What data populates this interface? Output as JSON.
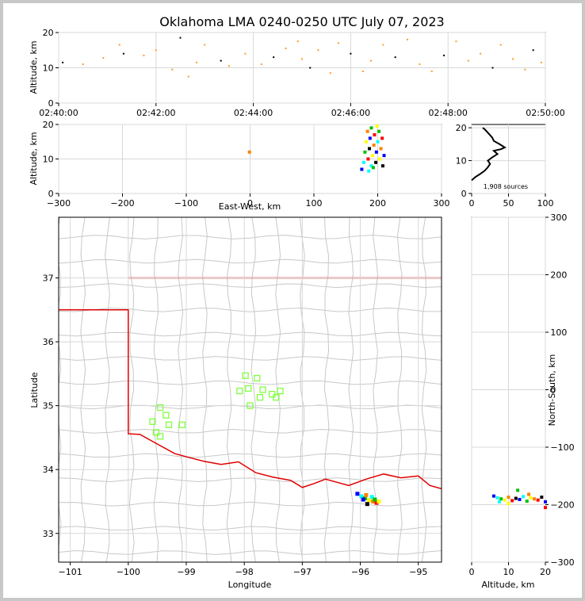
{
  "title": "Oklahoma LMA 0240-0250 UTC July 07, 2023",
  "panels": {
    "time_height": {
      "ylabel": "Altitude, km",
      "xticks": [
        "02:40:00",
        "02:42:00",
        "02:44:00",
        "02:46:00",
        "02:48:00",
        "02:50:00"
      ],
      "yticks": [
        "0",
        "10",
        "20"
      ]
    },
    "ew_alt": {
      "ylabel": "Altitude, km",
      "xlabel": "East-West, km",
      "xticks": [
        "−300",
        "−200",
        "−100",
        "0",
        "100",
        "200",
        "300"
      ],
      "yticks": [
        "0",
        "10",
        "20"
      ]
    },
    "histogram": {
      "xticks": [
        "0",
        "50",
        "100"
      ],
      "yticks": [
        "0",
        "10",
        "20"
      ],
      "annotation": "1,908 sources"
    },
    "map": {
      "xlabel": "Longitude",
      "ylabel": "Latitude",
      "xticks": [
        "−101",
        "−100",
        "−99",
        "−98",
        "−97",
        "−96",
        "−95"
      ],
      "yticks": [
        "33",
        "34",
        "35",
        "36",
        "37"
      ]
    },
    "alt_ns": {
      "xlabel": "Altitude, km",
      "ylabel": "North-South, km",
      "xticks": [
        "0",
        "10",
        "20"
      ],
      "yticks": [
        "300",
        "200",
        "100",
        "0",
        "−100",
        "−200",
        "−300"
      ]
    }
  },
  "colors": {
    "state_border": "#e00000",
    "station": "#80ff40",
    "county": "#c8c8c8",
    "source_scale": [
      "#0000ff",
      "#00ffff",
      "#00c000",
      "#ffff00",
      "#ff8000",
      "#ff0000",
      "#000000"
    ]
  },
  "chart_data": [
    {
      "id": "time_height",
      "type": "scatter",
      "xlabel": "",
      "ylabel": "Altitude, km",
      "xlim": [
        "02:40:00",
        "02:50:00"
      ],
      "ylim": [
        0,
        20
      ],
      "grid": true,
      "series": [
        {
          "points": [
            [
              "02:40:05",
              11.5
            ],
            [
              "02:40:30",
              11.0
            ],
            [
              "02:40:55",
              12.8
            ],
            [
              "02:41:15",
              16.5
            ],
            [
              "02:41:20",
              14.0
            ],
            [
              "02:41:45",
              13.5
            ],
            [
              "02:42:00",
              15.0
            ],
            [
              "02:42:20",
              9.5
            ],
            [
              "02:42:30",
              18.5
            ],
            [
              "02:42:40",
              7.5
            ],
            [
              "02:42:50",
              11.5
            ],
            [
              "02:43:00",
              16.5
            ],
            [
              "02:43:20",
              12.0
            ],
            [
              "02:43:30",
              10.5
            ],
            [
              "02:43:50",
              14.0
            ],
            [
              "02:44:10",
              11.0
            ],
            [
              "02:44:25",
              13.0
            ],
            [
              "02:44:40",
              15.5
            ],
            [
              "02:44:55",
              17.5
            ],
            [
              "02:45:00",
              12.5
            ],
            [
              "02:45:10",
              10.0
            ],
            [
              "02:45:20",
              15.0
            ],
            [
              "02:45:35",
              8.5
            ],
            [
              "02:45:45",
              17.0
            ],
            [
              "02:46:00",
              14.0
            ],
            [
              "02:46:15",
              9.0
            ],
            [
              "02:46:25",
              12.0
            ],
            [
              "02:46:40",
              16.5
            ],
            [
              "02:46:55",
              13.0
            ],
            [
              "02:47:10",
              18.0
            ],
            [
              "02:47:25",
              11.0
            ],
            [
              "02:47:40",
              9.0
            ],
            [
              "02:47:55",
              13.5
            ],
            [
              "02:48:10",
              17.5
            ],
            [
              "02:48:25",
              12.0
            ],
            [
              "02:48:40",
              14.0
            ],
            [
              "02:48:55",
              10.0
            ],
            [
              "02:49:05",
              16.5
            ],
            [
              "02:49:20",
              12.5
            ],
            [
              "02:49:35",
              9.5
            ],
            [
              "02:49:45",
              15.0
            ],
            [
              "02:49:55",
              11.5
            ]
          ]
        }
      ]
    },
    {
      "id": "ew_alt",
      "type": "scatter",
      "xlabel": "East-West, km",
      "ylabel": "Altitude, km",
      "xlim": [
        -300,
        300
      ],
      "ylim": [
        0,
        20
      ],
      "grid": true,
      "series": [
        {
          "points": [
            [
              175,
              7
            ],
            [
              178,
              9
            ],
            [
              180,
              12
            ],
            [
              182,
              15
            ],
            [
              184,
              18
            ],
            [
              185,
              10
            ],
            [
              187,
              13
            ],
            [
              188,
              16
            ],
            [
              190,
              8
            ],
            [
              190,
              19
            ],
            [
              192,
              11
            ],
            [
              194,
              14
            ],
            [
              195,
              17
            ],
            [
              197,
              9
            ],
            [
              198,
              12
            ],
            [
              200,
              15
            ],
            [
              202,
              18
            ],
            [
              203,
              10
            ],
            [
              205,
              13
            ],
            [
              207,
              16
            ],
            [
              208,
              8
            ],
            [
              210,
              11
            ],
            [
              186,
              6.5
            ],
            [
              193,
              7.5
            ],
            [
              199,
              19.5
            ],
            [
              -1,
              12
            ]
          ]
        }
      ]
    },
    {
      "id": "histogram",
      "type": "line",
      "xlabel": "",
      "ylabel": "",
      "xlim": [
        0,
        100
      ],
      "ylim": [
        0,
        21
      ],
      "grid": true,
      "series": [
        {
          "x": [
            0,
            5,
            12,
            18,
            22,
            25,
            22,
            28,
            35,
            30,
            40,
            45,
            38,
            30,
            28,
            24,
            20,
            18,
            15
          ],
          "y": [
            4,
            5,
            6,
            7,
            8,
            9,
            10,
            11,
            12,
            13,
            13.5,
            14,
            15,
            16,
            17,
            18,
            19,
            19.5,
            20
          ]
        }
      ],
      "annotation": "1,908 sources"
    },
    {
      "id": "map",
      "type": "scatter",
      "xlabel": "Longitude",
      "ylabel": "Latitude",
      "xlim": [
        -101.2,
        -94.6
      ],
      "ylim": [
        32.55,
        37.95
      ],
      "grid": true,
      "stations": [
        [
          -99.45,
          34.97
        ],
        [
          -99.35,
          34.85
        ],
        [
          -99.58,
          34.75
        ],
        [
          -99.3,
          34.7
        ],
        [
          -99.07,
          34.7
        ],
        [
          -99.52,
          34.58
        ],
        [
          -99.45,
          34.52
        ],
        [
          -97.98,
          35.47
        ],
        [
          -97.78,
          35.43
        ],
        [
          -98.08,
          35.23
        ],
        [
          -97.93,
          35.27
        ],
        [
          -97.68,
          35.25
        ],
        [
          -97.73,
          35.13
        ],
        [
          -97.52,
          35.18
        ],
        [
          -97.45,
          35.13
        ],
        [
          -97.38,
          35.23
        ],
        [
          -97.9,
          35.0
        ]
      ],
      "sources": [
        [
          -96.05,
          33.62
        ],
        [
          -95.98,
          33.58
        ],
        [
          -95.92,
          33.55
        ],
        [
          -95.85,
          33.52
        ],
        [
          -95.78,
          33.5
        ],
        [
          -95.72,
          33.48
        ],
        [
          -95.88,
          33.46
        ],
        [
          -95.95,
          33.53
        ],
        [
          -95.8,
          33.57
        ],
        [
          -95.75,
          33.53
        ],
        [
          -95.68,
          33.5
        ],
        [
          -95.9,
          33.6
        ]
      ]
    },
    {
      "id": "alt_ns",
      "type": "scatter",
      "xlabel": "Altitude, km",
      "ylabel": "North-South, km",
      "xlim": [
        0,
        20
      ],
      "ylim": [
        -300,
        300
      ],
      "grid": true,
      "series": [
        {
          "points": [
            [
              6,
              -185
            ],
            [
              7,
              -188
            ],
            [
              8,
              -190
            ],
            [
              9,
              -192
            ],
            [
              10,
              -187
            ],
            [
              11,
              -193
            ],
            [
              12,
              -189
            ],
            [
              13,
              -191
            ],
            [
              14,
              -186
            ],
            [
              15,
              -194
            ],
            [
              16,
              -188
            ],
            [
              17,
              -190
            ],
            [
              18,
              -192
            ],
            [
              19,
              -187
            ],
            [
              20,
              -195
            ],
            [
              7.5,
              -195
            ],
            [
              12.5,
              -175
            ],
            [
              10,
              -198
            ],
            [
              15.5,
              -182
            ],
            [
              20,
              -205
            ]
          ]
        }
      ]
    }
  ]
}
